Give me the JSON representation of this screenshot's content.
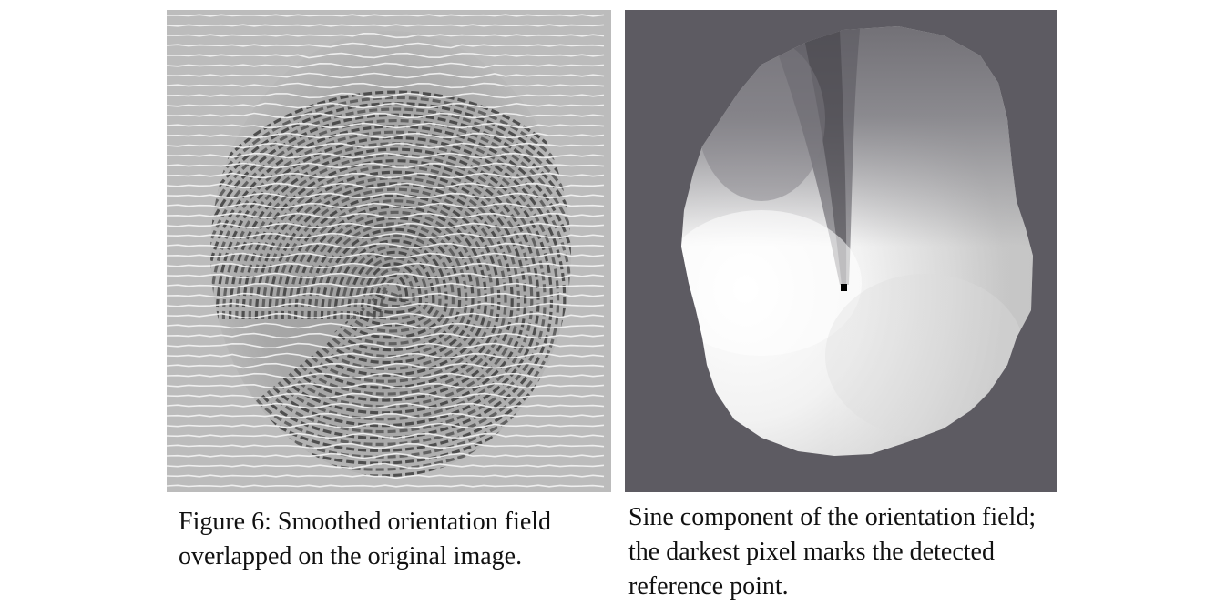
{
  "figure": {
    "left_panel": {
      "image_description_icon": "fingerprint-orientation-overlay-image",
      "caption": "Figure 6: Smoothed orientation field overlapped on the original image."
    },
    "right_panel": {
      "image_description_icon": "sine-component-orientation-image",
      "caption": "Sine component of the orientation field; the darkest pixel marks the detected reference point."
    }
  }
}
